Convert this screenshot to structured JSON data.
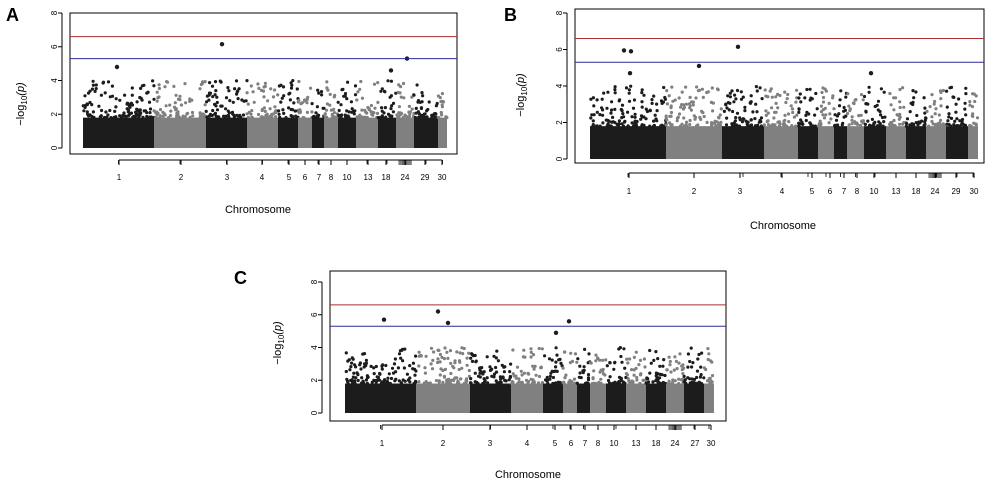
{
  "figure": {
    "panels": [
      "A",
      "B",
      "C"
    ],
    "xlabel": "Chromosome",
    "ylabel_prefix": "−log",
    "ylabel_sub": "10",
    "ylabel_suffix": "(p)"
  },
  "chart_data": [
    {
      "id": "A",
      "type": "scatter",
      "title": "A",
      "xlabel": "Chromosome",
      "ylabel": "-log10(p)",
      "ylim": [
        0,
        8
      ],
      "yticks": [
        "0",
        "2",
        "4",
        "6",
        "8"
      ],
      "x_tick_labels": [
        "1",
        "2",
        "3",
        "4",
        "5",
        "6",
        "7",
        "8",
        "10",
        "13",
        "18",
        "24",
        "29",
        "30"
      ],
      "threshold_lines": [
        {
          "name": "genome-wide significance",
          "y": 6.6,
          "color": "#a83232"
        },
        {
          "name": "suggestive significance",
          "y": 5.3,
          "color": "#2b2b9a"
        }
      ],
      "colors": [
        "#1c1c1c",
        "#808080"
      ],
      "highlight_points": [
        {
          "chromosome": "3",
          "y": 6.15
        },
        {
          "chromosome": "24",
          "y": 5.3
        },
        {
          "chromosome": "1",
          "y": 4.8
        },
        {
          "chromosome": "18",
          "y": 4.6
        }
      ]
    },
    {
      "id": "B",
      "type": "scatter",
      "title": "B",
      "xlabel": "Chromosome",
      "ylabel": "-log10(p)",
      "ylim": [
        0,
        8
      ],
      "yticks": [
        "0",
        "2",
        "4",
        "6",
        "8"
      ],
      "x_tick_labels": [
        "1",
        "2",
        "3",
        "4",
        "5",
        "6",
        "7",
        "8",
        "10",
        "13",
        "18",
        "24",
        "29",
        "30"
      ],
      "threshold_lines": [
        {
          "name": "genome-wide significance",
          "y": 6.6,
          "color": "#a83232"
        },
        {
          "name": "suggestive significance",
          "y": 5.3,
          "color": "#2b2b9a"
        }
      ],
      "colors": [
        "#1c1c1c",
        "#808080"
      ],
      "highlight_points": [
        {
          "chromosome": "1",
          "y": 5.95
        },
        {
          "chromosome": "1",
          "y": 5.9
        },
        {
          "chromosome": "3",
          "y": 6.15
        },
        {
          "chromosome": "2",
          "y": 5.1
        },
        {
          "chromosome": "1",
          "y": 4.7
        },
        {
          "chromosome": "10",
          "y": 4.7
        }
      ]
    },
    {
      "id": "C",
      "type": "scatter",
      "title": "C",
      "xlabel": "Chromosome",
      "ylabel": "-log10(p)",
      "ylim": [
        0,
        8
      ],
      "yticks": [
        "0",
        "2",
        "4",
        "6",
        "8"
      ],
      "x_tick_labels": [
        "1",
        "2",
        "3",
        "4",
        "5",
        "6",
        "7",
        "8",
        "10",
        "13",
        "18",
        "24",
        "27",
        "30"
      ],
      "threshold_lines": [
        {
          "name": "genome-wide significance",
          "y": 6.6,
          "color": "#a83232"
        },
        {
          "name": "suggestive significance",
          "y": 5.3,
          "color": "#2b2b9a"
        }
      ],
      "colors": [
        "#1c1c1c",
        "#808080"
      ],
      "highlight_points": [
        {
          "chromosome": "2",
          "y": 6.2
        },
        {
          "chromosome": "1",
          "y": 5.7
        },
        {
          "chromosome": "6",
          "y": 5.6
        },
        {
          "chromosome": "2",
          "y": 5.5
        },
        {
          "chromosome": "5",
          "y": 4.9
        }
      ]
    }
  ]
}
